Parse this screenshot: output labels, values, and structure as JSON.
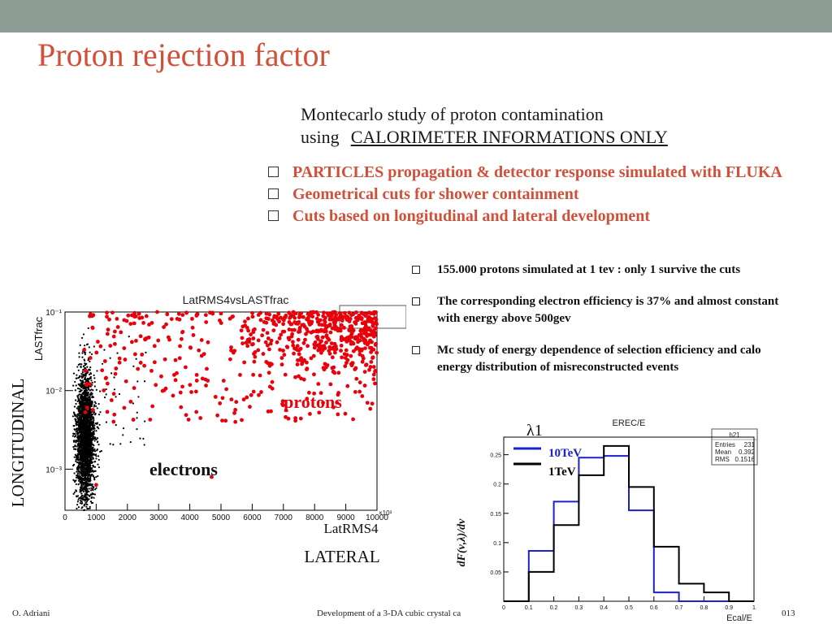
{
  "slide": {
    "title": "Proton  rejection factor",
    "subtitle_line1": "Montecarlo study of proton contamination",
    "subtitle_using": "using",
    "subtitle_emph": "CALORIMETER  INFORMATIONS ONLY",
    "red_bullets": [
      "PARTICLES propagation & detector response simulated with FLUKA",
      "Geometrical cuts  for  shower containment",
      "Cuts based on longitudinal and lateral development"
    ],
    "black_bullets": [
      "155.000  protons   simulated  at 1 tev   : only  1 survive  the cuts",
      "The corresponding electron efficiency is 37%  and almost constant with energy above 500gev",
      "Mc study  of energy dependence of  selection efficiency and  calo energy  distribution of misreconstructed events"
    ],
    "footer_left": "O. Adriani",
    "footer_center": "Development of a 3-DA cubic crystal ca",
    "footer_right": "013"
  },
  "colors": {
    "accent": "#d0503a",
    "topbar": "#8d9c94",
    "protons": "#e8000b",
    "electrons": "#000000",
    "hist_10tev": "#1a22c8",
    "hist_1tev": "#000000"
  },
  "chart_data": [
    {
      "type": "scatter",
      "title": "LatRMS4vsLASTfrac",
      "xlabel": "LatRMS4",
      "ylabel": "LASTfrac",
      "annotations": {
        "left_axis": "LONGITUDINAL",
        "bottom_axis": "LATERAL",
        "protons": "protons",
        "electrons": "electrons"
      },
      "xlim": [
        0,
        10000
      ],
      "ylim": [
        0.0003,
        0.1
      ],
      "yscale": "log",
      "x_multiplier": "×10³",
      "x_ticks": [
        "0",
        "1000",
        "2000",
        "3000",
        "4000",
        "5000",
        "6000",
        "7000",
        "8000",
        "9000",
        "10000"
      ],
      "y_ticks": [
        "10⁻¹",
        "10⁻²",
        "10⁻³"
      ],
      "series": [
        {
          "name": "protons",
          "color": "#e8000b",
          "approx_points": 700,
          "distribution": "spread over x 500–10000, LASTfrac mostly 0.005–0.1, densest at high x and high LASTfrac"
        },
        {
          "name": "electrons",
          "color": "#000000",
          "approx_points": 4000,
          "distribution": "narrow band at x ≈ 300–1100, LASTfrac 0.0003–0.1"
        }
      ]
    },
    {
      "type": "histogram",
      "title": "EREC/E",
      "xlabel": "Ecal/E",
      "ylabel": "dF(ν,λ)/dν",
      "label_top": "λ1",
      "xlim": [
        0,
        1
      ],
      "ylim": [
        0,
        0.28
      ],
      "x_ticks": [
        "0",
        "0.1",
        "0.2",
        "0.3",
        "0.4",
        "0.5",
        "0.6",
        "0.7",
        "0.8",
        "0.9",
        "1"
      ],
      "y_ticks": [
        "0.05",
        "0.1",
        "0.15",
        "0.2",
        "0.25"
      ],
      "stats": {
        "name": "h21",
        "Entries": "231",
        "Mean": "0.392",
        "RMS": "0.1516"
      },
      "bin_edges": [
        0.0,
        0.1,
        0.2,
        0.3,
        0.4,
        0.5,
        0.6,
        0.7,
        0.8,
        0.9,
        1.0
      ],
      "series": [
        {
          "name": "10TeV",
          "color": "#1a22c8",
          "values": [
            0,
            0.086,
            0.17,
            0.245,
            0.248,
            0.155,
            0.015,
            0,
            0,
            0
          ]
        },
        {
          "name": "1TeV",
          "color": "#000000",
          "values": [
            0,
            0.05,
            0.13,
            0.215,
            0.265,
            0.195,
            0.093,
            0.03,
            0.015,
            0
          ]
        }
      ]
    }
  ]
}
